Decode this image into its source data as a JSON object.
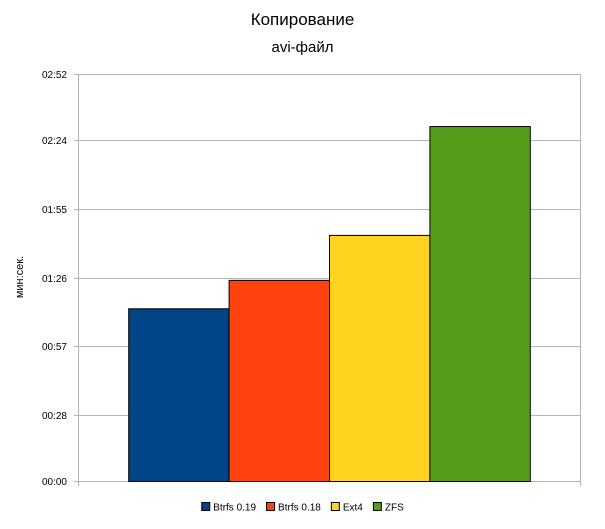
{
  "chart_data": {
    "type": "bar",
    "title": "Копирование",
    "subtitle": "avi-файл",
    "ylabel": "мин:сек.",
    "xlabel": "",
    "categories": [
      ""
    ],
    "y_unit": "seconds",
    "ylim": [
      0,
      172
    ],
    "ytick_values": [
      0,
      28,
      57,
      86,
      115,
      144,
      172
    ],
    "ytick_labels": [
      "00:00",
      "00:28",
      "00:57",
      "01:26",
      "01:55",
      "02:24",
      "02:52"
    ],
    "grid": true,
    "legend_position": "bottom",
    "series": [
      {
        "name": "Btrfs 0.19",
        "values": [
          73
        ],
        "color": "#004586"
      },
      {
        "name": "Btrfs 0.18",
        "values": [
          85
        ],
        "color": "#ff420e"
      },
      {
        "name": "Ext4",
        "values": [
          104
        ],
        "color": "#ffd320"
      },
      {
        "name": "ZFS",
        "values": [
          150
        ],
        "color": "#579d1c"
      }
    ]
  }
}
